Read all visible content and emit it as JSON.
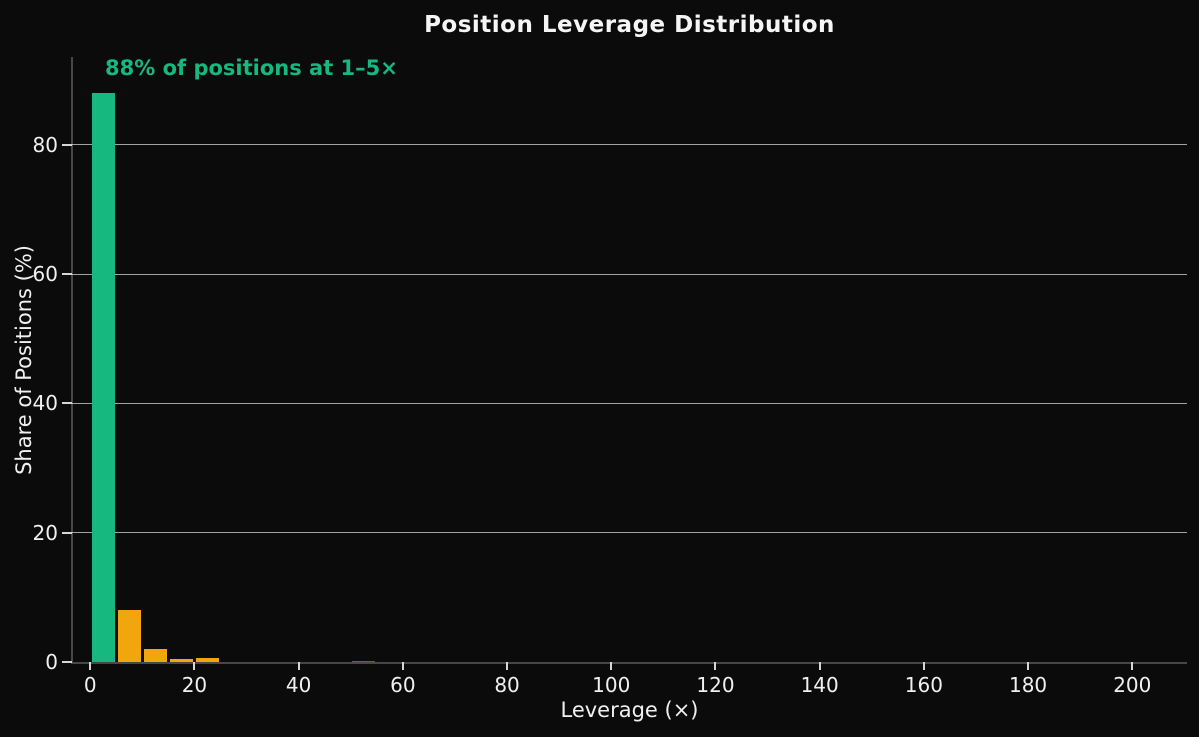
{
  "figure": {
    "title": "Position Leverage Distribution",
    "annotation": "88% of positions at 1–5×",
    "xlabel": "Leverage (×)",
    "ylabel": "Share of Positions (%)"
  },
  "colors": {
    "background": "#0b0b0b",
    "text": "#f0f0f0",
    "title_text": "#f5f5f5",
    "annotation_green": "#17b880",
    "gridline": "rgba(255,255,255,0.62)",
    "spine": "#474747",
    "tick": "#d6d6d6",
    "palette": {
      "green": "#17b880",
      "orange": "#f2a60d",
      "red": "#c0392b"
    }
  },
  "chart_data": {
    "type": "bar",
    "title": "Position Leverage Distribution",
    "xlabel": "Leverage (×)",
    "ylabel": "Share of Positions (%)",
    "annotation": "88% of positions at 1–5×",
    "grid": "horizontal",
    "legend": "none",
    "xlim": [
      -3.5,
      210.5
    ],
    "ylim": [
      0,
      93.6
    ],
    "xticks": [
      0,
      20,
      40,
      60,
      80,
      100,
      120,
      140,
      160,
      180,
      200
    ],
    "yticks": [
      0,
      20,
      40,
      60,
      80
    ],
    "bin_width": 5,
    "bins": [
      {
        "range": [
          0,
          5
        ],
        "value": 88.0,
        "color": "green"
      },
      {
        "range": [
          5,
          10
        ],
        "value": 8.0,
        "color": "orange"
      },
      {
        "range": [
          10,
          15
        ],
        "value": 2.0,
        "color": "orange"
      },
      {
        "range": [
          15,
          20
        ],
        "value": 0.5,
        "color": "orange"
      },
      {
        "range": [
          20,
          25
        ],
        "value": 0.6,
        "color": "orange"
      },
      {
        "range": [
          50,
          55
        ],
        "value": 0.2,
        "color": "red"
      }
    ]
  }
}
